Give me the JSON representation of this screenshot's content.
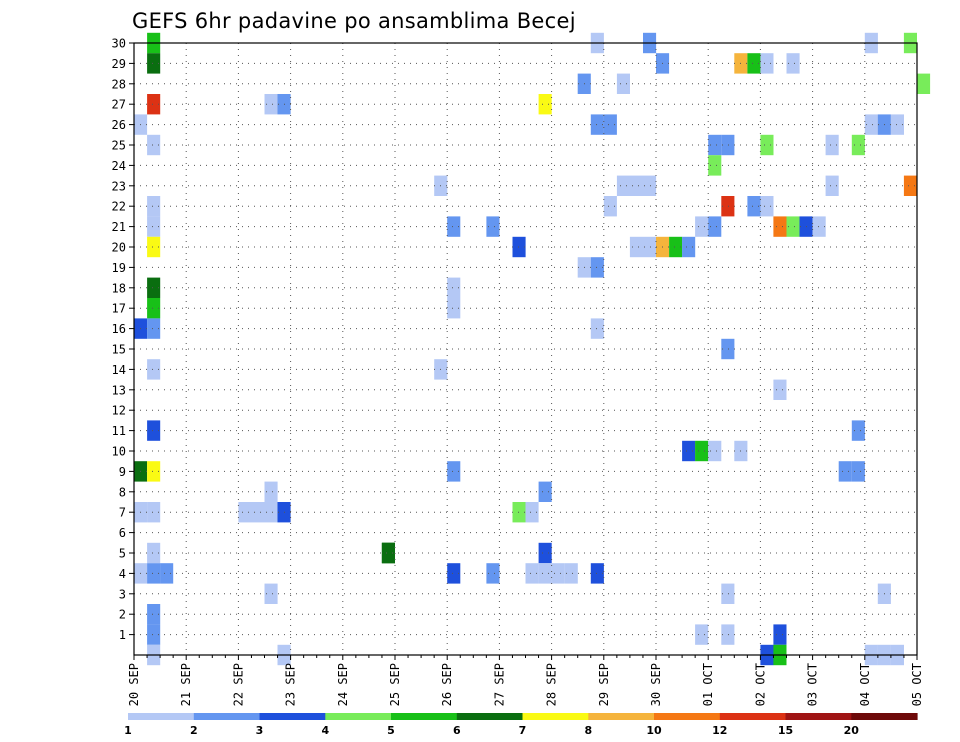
{
  "chart_data": {
    "type": "heatmap",
    "title": "GEFS 6hr padavine po ansamblima Becej",
    "xlabel": "",
    "ylabel": "",
    "x_range": [
      "2018-09-20T00",
      "2018-10-05T00"
    ],
    "y_range": [
      0,
      30
    ],
    "x_ticks": [
      "20 SEP",
      "21 SEP",
      "22 SEP",
      "23 SEP",
      "24 SEP",
      "25 SEP",
      "26 SEP",
      "27 SEP",
      "28 SEP",
      "29 SEP",
      "30 SEP",
      "01 OCT",
      "02 OCT",
      "03 OCT",
      "04 OCT",
      "05 OCT"
    ],
    "y_ticks": [
      "1",
      "2",
      "3",
      "4",
      "5",
      "6",
      "7",
      "8",
      "9",
      "10",
      "11",
      "12",
      "13",
      "14",
      "15",
      "16",
      "17",
      "18",
      "19",
      "20",
      "21",
      "22",
      "23",
      "24",
      "25",
      "26",
      "27",
      "28",
      "29",
      "30"
    ],
    "grid": true,
    "colorbar": {
      "placement": "bottom",
      "labels": [
        "1",
        "2",
        "3",
        "4",
        "5",
        "6",
        "7",
        "8",
        "10",
        "12",
        "15",
        "20"
      ],
      "colors": [
        "#b4c8f5",
        "#6496f0",
        "#1e50dc",
        "#78ec5a",
        "#18c018",
        "#0a6e10",
        "#fafa14",
        "#f5b43c",
        "#f57814",
        "#dc3214",
        "#a01414",
        "#6e0a0a"
      ]
    },
    "cells": [
      {
        "t": "2018-09-20T06",
        "m": 30,
        "v": 5
      },
      {
        "t": "2018-09-20T06",
        "m": 29,
        "v": 6
      },
      {
        "t": "2018-09-20T06",
        "m": 27,
        "v": 12
      },
      {
        "t": "2018-09-20T00",
        "m": 26,
        "v": 1
      },
      {
        "t": "2018-09-20T06",
        "m": 25,
        "v": 1
      },
      {
        "t": "2018-09-20T06",
        "m": 22,
        "v": 1
      },
      {
        "t": "2018-09-20T06",
        "m": 21,
        "v": 1
      },
      {
        "t": "2018-09-20T06",
        "m": 20,
        "v": 7
      },
      {
        "t": "2018-09-20T06",
        "m": 18,
        "v": 6
      },
      {
        "t": "2018-09-20T06",
        "m": 17,
        "v": 5
      },
      {
        "t": "2018-09-20T00",
        "m": 16,
        "v": 3
      },
      {
        "t": "2018-09-20T06",
        "m": 16,
        "v": 2
      },
      {
        "t": "2018-09-20T06",
        "m": 14,
        "v": 1
      },
      {
        "t": "2018-09-20T06",
        "m": 11,
        "v": 3
      },
      {
        "t": "2018-09-20T00",
        "m": 9,
        "v": 6
      },
      {
        "t": "2018-09-20T06",
        "m": 9,
        "v": 7
      },
      {
        "t": "2018-09-20T00",
        "m": 7,
        "v": 1
      },
      {
        "t": "2018-09-20T06",
        "m": 7,
        "v": 1
      },
      {
        "t": "2018-09-20T06",
        "m": 5,
        "v": 1
      },
      {
        "t": "2018-09-20T00",
        "m": 4,
        "v": 1
      },
      {
        "t": "2018-09-20T06",
        "m": 4,
        "v": 2
      },
      {
        "t": "2018-09-20T12",
        "m": 4,
        "v": 2
      },
      {
        "t": "2018-09-20T06",
        "m": 2,
        "v": 2
      },
      {
        "t": "2018-09-20T06",
        "m": 1,
        "v": 2
      },
      {
        "t": "2018-09-20T06",
        "m": 0,
        "v": 1
      },
      {
        "t": "2018-09-22T12",
        "m": 27,
        "v": 1
      },
      {
        "t": "2018-09-22T18",
        "m": 27,
        "v": 2
      },
      {
        "t": "2018-09-22T12",
        "m": 8,
        "v": 1
      },
      {
        "t": "2018-09-22T00",
        "m": 7,
        "v": 1
      },
      {
        "t": "2018-09-22T06",
        "m": 7,
        "v": 1
      },
      {
        "t": "2018-09-22T12",
        "m": 7,
        "v": 1
      },
      {
        "t": "2018-09-22T18",
        "m": 7,
        "v": 3
      },
      {
        "t": "2018-09-22T12",
        "m": 3,
        "v": 1
      },
      {
        "t": "2018-09-22T18",
        "m": 0,
        "v": 1
      },
      {
        "t": "2018-09-24T18",
        "m": 5,
        "v": 6
      },
      {
        "t": "2018-09-24T18",
        "m": 5,
        "v": 6
      },
      {
        "t": "2018-09-24T18",
        "m": 5,
        "v": 6
      },
      {
        "t": "2018-09-25T18",
        "m": 23,
        "v": 1
      },
      {
        "t": "2018-09-25T18",
        "m": 14,
        "v": 1
      },
      {
        "t": "2018-09-26T18",
        "m": 21,
        "v": 2
      },
      {
        "t": "2018-09-26T00",
        "m": 21,
        "v": 2
      },
      {
        "t": "2018-09-26T00",
        "m": 18,
        "v": 1
      },
      {
        "t": "2018-09-26T00",
        "m": 17,
        "v": 1
      },
      {
        "t": "2018-09-26T00",
        "m": 9,
        "v": 2
      },
      {
        "t": "2018-09-26T00",
        "m": 4,
        "v": 3
      },
      {
        "t": "2018-09-26T18",
        "m": 4,
        "v": 2
      },
      {
        "t": "2018-09-27T18",
        "m": 27,
        "v": 7
      },
      {
        "t": "2018-09-27T06",
        "m": 20,
        "v": 3
      },
      {
        "t": "2018-09-27T18",
        "m": 8,
        "v": 2
      },
      {
        "t": "2018-09-27T06",
        "m": 7,
        "v": 4
      },
      {
        "t": "2018-09-27T12",
        "m": 7,
        "v": 1
      },
      {
        "t": "2018-09-27T18",
        "m": 5,
        "v": 3
      },
      {
        "t": "2018-09-27T12",
        "m": 4,
        "v": 1
      },
      {
        "t": "2018-09-27T18",
        "m": 4,
        "v": 1
      },
      {
        "t": "2018-09-28T18",
        "m": 30,
        "v": 1
      },
      {
        "t": "2018-09-28T12",
        "m": 28,
        "v": 2
      },
      {
        "t": "2018-09-28T18",
        "m": 26,
        "v": 2
      },
      {
        "t": "2018-09-29T00",
        "m": 26,
        "v": 2
      },
      {
        "t": "2018-09-29T00",
        "m": 22,
        "v": 1
      },
      {
        "t": "2018-09-28T12",
        "m": 19,
        "v": 1
      },
      {
        "t": "2018-09-28T18",
        "m": 19,
        "v": 2
      },
      {
        "t": "2018-09-28T18",
        "m": 16,
        "v": 1
      },
      {
        "t": "2018-09-28T00",
        "m": 4,
        "v": 1
      },
      {
        "t": "2018-09-28T06",
        "m": 4,
        "v": 1
      },
      {
        "t": "2018-09-28T18",
        "m": 4,
        "v": 3
      },
      {
        "t": "2018-09-29T18",
        "m": 30,
        "v": 2
      },
      {
        "t": "2018-09-29T06",
        "m": 28,
        "v": 1
      },
      {
        "t": "2018-09-30T00",
        "m": 29,
        "v": 2
      },
      {
        "t": "2018-09-29T06",
        "m": 23,
        "v": 1
      },
      {
        "t": "2018-09-29T12",
        "m": 23,
        "v": 1
      },
      {
        "t": "2018-09-29T18",
        "m": 23,
        "v": 1
      },
      {
        "t": "2018-09-29T12",
        "m": 20,
        "v": 1
      },
      {
        "t": "2018-09-29T18",
        "m": 20,
        "v": 1
      },
      {
        "t": "2018-09-30T00",
        "m": 20,
        "v": 8
      },
      {
        "t": "2018-09-30T06",
        "m": 20,
        "v": 5
      },
      {
        "t": "2018-09-30T12",
        "m": 20,
        "v": 2
      },
      {
        "t": "2018-09-30T18",
        "m": 21,
        "v": 1
      },
      {
        "t": "2018-10-01T00",
        "m": 21,
        "v": 2
      },
      {
        "t": "2018-09-30T12",
        "m": 10,
        "v": 3
      },
      {
        "t": "2018-09-30T18",
        "m": 10,
        "v": 5
      },
      {
        "t": "2018-10-01T00",
        "m": 10,
        "v": 1
      },
      {
        "t": "2018-09-30T18",
        "m": 1,
        "v": 1
      },
      {
        "t": "2018-10-01T12",
        "m": 29,
        "v": 8
      },
      {
        "t": "2018-10-01T18",
        "m": 29,
        "v": 5
      },
      {
        "t": "2018-10-02T00",
        "m": 29,
        "v": 1
      },
      {
        "t": "2018-10-01T00",
        "m": 25,
        "v": 2
      },
      {
        "t": "2018-10-01T06",
        "m": 25,
        "v": 2
      },
      {
        "t": "2018-10-01T00",
        "m": 24,
        "v": 4
      },
      {
        "t": "2018-10-01T06",
        "m": 22,
        "v": 12
      },
      {
        "t": "2018-10-01T18",
        "m": 22,
        "v": 2
      },
      {
        "t": "2018-10-02T00",
        "m": 22,
        "v": 1
      },
      {
        "t": "2018-10-01T06",
        "m": 15,
        "v": 2
      },
      {
        "t": "2018-10-01T12",
        "m": 10,
        "v": 1
      },
      {
        "t": "2018-10-01T06",
        "m": 3,
        "v": 1
      },
      {
        "t": "2018-10-01T06",
        "m": 1,
        "v": 1
      },
      {
        "t": "2018-10-02T00",
        "m": 25,
        "v": 4
      },
      {
        "t": "2018-10-02T12",
        "m": 29,
        "v": 1
      },
      {
        "t": "2018-10-02T06",
        "m": 21,
        "v": 10
      },
      {
        "t": "2018-10-02T12",
        "m": 21,
        "v": 4
      },
      {
        "t": "2018-10-02T18",
        "m": 21,
        "v": 3
      },
      {
        "t": "2018-10-03T00",
        "m": 21,
        "v": 1
      },
      {
        "t": "2018-10-02T06",
        "m": 13,
        "v": 1
      },
      {
        "t": "2018-10-02T06",
        "m": 1,
        "v": 3
      },
      {
        "t": "2018-10-02T00",
        "m": 0,
        "v": 3
      },
      {
        "t": "2018-10-02T06",
        "m": 0,
        "v": 5
      },
      {
        "t": "2018-10-03T06",
        "m": 25,
        "v": 1
      },
      {
        "t": "2018-10-03T06",
        "m": 23,
        "v": 1
      },
      {
        "t": "2018-10-03T18",
        "m": 25,
        "v": 4
      },
      {
        "t": "2018-10-03T18",
        "m": 11,
        "v": 2
      },
      {
        "t": "2018-10-03T12",
        "m": 9,
        "v": 2
      },
      {
        "t": "2018-10-03T18",
        "m": 9,
        "v": 2
      },
      {
        "t": "2018-10-04T00",
        "m": 30,
        "v": 1
      },
      {
        "t": "2018-10-04T18",
        "m": 30,
        "v": 4
      },
      {
        "t": "2018-10-05T00",
        "m": 28,
        "v": 4
      },
      {
        "t": "2018-10-04T00",
        "m": 26,
        "v": 1
      },
      {
        "t": "2018-10-04T06",
        "m": 26,
        "v": 2
      },
      {
        "t": "2018-10-04T12",
        "m": 26,
        "v": 1
      },
      {
        "t": "2018-10-04T18",
        "m": 23,
        "v": 10
      },
      {
        "t": "2018-10-04T06",
        "m": 3,
        "v": 1
      },
      {
        "t": "2018-10-04T00",
        "m": 0,
        "v": 1
      },
      {
        "t": "2018-10-04T06",
        "m": 0,
        "v": 1
      },
      {
        "t": "2018-10-04T12",
        "m": 0,
        "v": 1
      }
    ]
  }
}
